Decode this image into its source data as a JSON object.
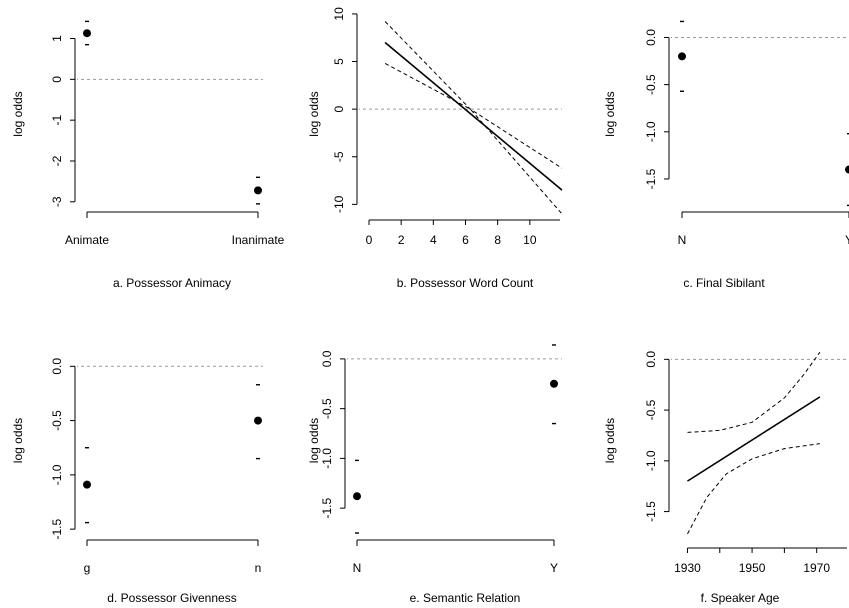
{
  "chart_data": [
    {
      "id": "a",
      "type": "scatter",
      "title": "a. Possessor Animacy",
      "ylabel": "log odds",
      "xaxis": "categorical",
      "categories": [
        "Animate",
        "Inanimate"
      ],
      "points": [
        {
          "x": "Animate",
          "y": 1.13,
          "lower": 0.85,
          "upper": 1.42
        },
        {
          "x": "Inanimate",
          "y": -2.72,
          "lower": -3.05,
          "upper": -2.4
        }
      ],
      "yticks": [
        1,
        0,
        -1,
        -2,
        -3
      ],
      "ytick_labels": [
        "1",
        "0",
        "-1",
        "-2",
        "-3"
      ],
      "ylim": [
        -3.25,
        1.65
      ],
      "reference_line": 0,
      "xlabels_horizontal": true
    },
    {
      "id": "b",
      "type": "line",
      "title": "b. Possessor Word Count",
      "ylabel": "log odds",
      "xaxis": "numeric",
      "xlim": [
        0,
        12
      ],
      "xticks": [
        0,
        2,
        4,
        6,
        8,
        10
      ],
      "xtick_labels": [
        "0",
        "2",
        "4",
        "6",
        "8",
        "10"
      ],
      "fit": {
        "x": [
          1,
          12
        ],
        "y": [
          7.0,
          -8.5
        ]
      },
      "ci_upper": [
        [
          1,
          9.2
        ],
        [
          6.3,
          0
        ],
        [
          12,
          -6.2
        ]
      ],
      "ci_lower": [
        [
          1,
          4.8
        ],
        [
          6.3,
          0
        ],
        [
          12,
          -11.0
        ]
      ],
      "yticks": [
        10,
        5,
        0,
        -5,
        -10
      ],
      "ytick_labels": [
        "10",
        "5",
        "0",
        "-5",
        "-10"
      ],
      "ylim": [
        -10.8,
        10.2
      ],
      "reference_line": 0
    },
    {
      "id": "c",
      "type": "scatter",
      "title": "c. Final Sibilant",
      "ylabel": "log odds",
      "xaxis": "categorical",
      "categories": [
        "N",
        "Y"
      ],
      "points": [
        {
          "x": "N",
          "y": -0.2,
          "lower": -0.57,
          "upper": 0.17
        },
        {
          "x": "Y",
          "y": -1.4,
          "lower": -1.78,
          "upper": -1.02
        }
      ],
      "yticks": [
        0.0,
        -0.5,
        -1.0,
        -1.5
      ],
      "ytick_labels": [
        "0.0",
        "-0.5",
        "-1.0",
        "-1.5"
      ],
      "ylim": [
        -1.85,
        0.27
      ],
      "reference_line": 0
    },
    {
      "id": "d",
      "type": "scatter",
      "title": "d. Possessor Givenness",
      "ylabel": "log odds",
      "xaxis": "categorical",
      "categories": [
        "g",
        "n"
      ],
      "points": [
        {
          "x": "g",
          "y": -1.09,
          "lower": -1.44,
          "upper": -0.75
        },
        {
          "x": "n",
          "y": -0.5,
          "lower": -0.85,
          "upper": -0.17
        }
      ],
      "yticks": [
        0.0,
        -0.5,
        -1.0,
        -1.5
      ],
      "ytick_labels": [
        "0.0",
        "-0.5",
        "-1.0",
        "-1.5"
      ],
      "ylim": [
        -1.6,
        0.27
      ],
      "reference_line": 0
    },
    {
      "id": "e",
      "type": "scatter",
      "title": "e. Semantic Relation",
      "ylabel": "log odds",
      "xaxis": "categorical",
      "categories": [
        "N",
        "Y"
      ],
      "points": [
        {
          "x": "N",
          "y": -1.38,
          "lower": -1.75,
          "upper": -1.02
        },
        {
          "x": "Y",
          "y": -0.25,
          "lower": -0.65,
          "upper": 0.14
        }
      ],
      "yticks": [
        0.0,
        -0.5,
        -1.0,
        -1.5
      ],
      "ytick_labels": [
        "0.0",
        "-0.5",
        "-1.0",
        "-1.5"
      ],
      "ylim": [
        -1.82,
        0.22
      ],
      "reference_line": 0
    },
    {
      "id": "f",
      "type": "line",
      "title": "f. Speaker Age",
      "ylabel": "log odds",
      "xaxis": "numeric",
      "xlim": [
        1928,
        1980
      ],
      "xticks": [
        1930,
        1950,
        1970
      ],
      "xtick_labels": [
        "1930",
        "1950",
        "1970"
      ],
      "xminor_ticks": [
        1940,
        1960
      ],
      "fit": {
        "x": [
          1930,
          1971
        ],
        "y": [
          -1.2,
          -0.37
        ]
      },
      "ci_upper": [
        [
          1930,
          -0.72
        ],
        [
          1940,
          -0.7
        ],
        [
          1950,
          -0.62
        ],
        [
          1960,
          -0.38
        ],
        [
          1966,
          -0.15
        ],
        [
          1971,
          0.07
        ]
      ],
      "ci_lower": [
        [
          1930,
          -1.72
        ],
        [
          1936,
          -1.36
        ],
        [
          1942,
          -1.13
        ],
        [
          1950,
          -0.98
        ],
        [
          1960,
          -0.88
        ],
        [
          1971,
          -0.83
        ]
      ],
      "yticks": [
        0.0,
        -0.5,
        -1.0,
        -1.5
      ],
      "ytick_labels": [
        "0.0",
        "-0.5",
        "-1.0",
        "-1.5"
      ],
      "ylim": [
        -1.78,
        0.22
      ],
      "reference_line": 0
    }
  ]
}
